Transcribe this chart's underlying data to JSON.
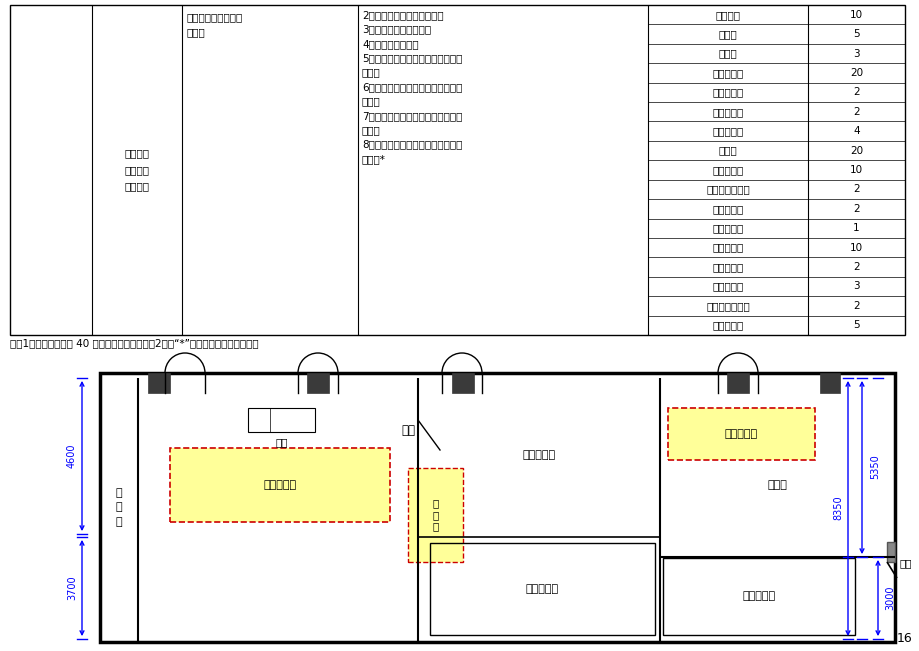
{
  "note": "注：1、设备数量为按 40 名学生同时实训配置；2、带“*”号的为选作内容或设备。",
  "page_number": "16",
  "bg_color": "#ffffff",
  "eq_items": [
    [
      "分析天平",
      "10"
    ],
    [
      "电子称",
      "5"
    ],
    [
      "干燥筱",
      "3"
    ],
    [
      "光学显微镜",
      "20"
    ],
    [
      "高压灭菌锅",
      "2"
    ],
    [
      "恒温培养筱",
      "2"
    ],
    [
      "超净工作台",
      "4"
    ],
    [
      "酸度计",
      "20"
    ],
    [
      "分光光度计",
      "10"
    ],
    [
      "原子吸收光谱仪",
      "2"
    ],
    [
      "气相色谱仪",
      "2"
    ],
    [
      "液相色谱仪",
      "1"
    ],
    [
      "阿贝折光仪",
      "10"
    ],
    [
      "泡沫测定仪",
      "2"
    ],
    [
      "离心试验机",
      "3"
    ],
    [
      "自动界面张力仪",
      "2"
    ],
    [
      "旋转第度计",
      "5"
    ]
  ],
  "col1_text": "化妆品检\n验与质量\n管理实训",
  "col2_text": "妆品产品的质量检测\n与评价",
  "col3_lines": [
    "2．表面活性剂定性定量分析",
    "3．表面活性剂性能分析",
    "4．常用微生物检验",
    "5．膏霜类日化产品的质量检测与性",
    "能分析",
    "6．液洗类日化产品的质量检测与性",
    "能分析",
    "7．粉体状日化产品的质量检测与性",
    "能分析",
    "8．气雾状日化产品的质量检测与性",
    "能分析*"
  ]
}
